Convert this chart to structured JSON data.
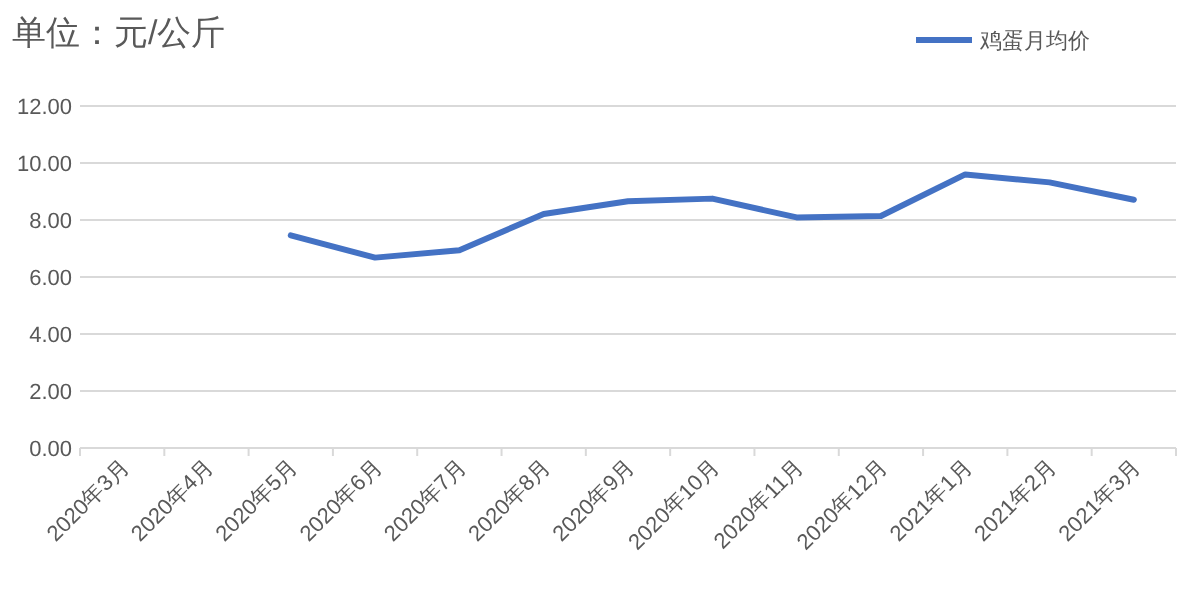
{
  "chart_data": {
    "type": "line",
    "title": "单位：元/公斤",
    "categories": [
      "2020年3月",
      "2020年4月",
      "2020年5月",
      "2020年6月",
      "2020年7月",
      "2020年8月",
      "2020年9月",
      "2020年10月",
      "2020年11月",
      "2020年12月",
      "2021年1月",
      "2021年2月",
      "2021年3月"
    ],
    "series": [
      {
        "name": "鸡蛋月均价",
        "color": "#4472c4",
        "values": [
          null,
          null,
          7.46,
          6.68,
          6.94,
          8.21,
          8.66,
          8.75,
          8.09,
          8.14,
          9.6,
          9.32,
          8.71
        ]
      }
    ],
    "ylim": [
      0,
      12
    ],
    "yticks": [
      {
        "value": 0,
        "label": "0.00"
      },
      {
        "value": 2,
        "label": "2.00"
      },
      {
        "value": 4,
        "label": "4.00"
      },
      {
        "value": 6,
        "label": "6.00"
      },
      {
        "value": 8,
        "label": "8.00"
      },
      {
        "value": 10,
        "label": "10.00"
      },
      {
        "value": 12,
        "label": "12.00"
      }
    ],
    "grid": "y",
    "legend": "top right",
    "marker": "none",
    "line_style": "solid"
  }
}
